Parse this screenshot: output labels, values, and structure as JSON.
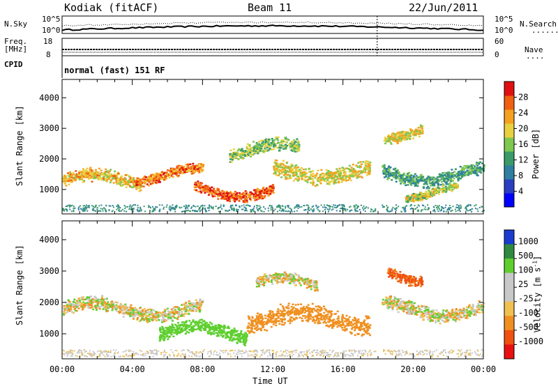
{
  "header": {
    "station": "Kodiak (fitACF)",
    "beam": "Beam 11",
    "date": "22/Jun/2011"
  },
  "top_panels": {
    "nsky_label": "N.Sky",
    "nsky_ticks": [
      "10^5",
      "10^0"
    ],
    "nsearch_label": "N.Search",
    "nsearch_ticks": [
      "10^5",
      "10^0"
    ],
    "freq_label": "Freq.",
    "freq_unit": "[MHz]",
    "freq_ticks": [
      "18",
      "8"
    ],
    "nave_label": "Nave",
    "nave_ticks": [
      "60",
      "0"
    ],
    "cpid_label": "CPID",
    "cpid_mode": "normal (fast) 151 RF"
  },
  "chart_data": [
    {
      "type": "heatmap",
      "name": "power",
      "ylabel": "Slant Range [km]",
      "yticks": [
        "4000",
        "3000",
        "2000",
        "1000"
      ],
      "ytick_values": [
        4000,
        3000,
        2000,
        1000
      ],
      "ylim": [
        200,
        4600
      ],
      "xlim_hours": [
        0,
        24
      ],
      "colorbar": {
        "label": "Power [dB]",
        "ticks": [
          "28",
          "24",
          "20",
          "16",
          "12",
          "8",
          "4"
        ],
        "tick_values": [
          28,
          24,
          20,
          16,
          12,
          8,
          4
        ],
        "range": [
          0,
          32
        ]
      },
      "features": [
        {
          "t0": 0.0,
          "t1": 4.5,
          "r": 1300,
          "w": 250,
          "v": 22
        },
        {
          "t0": 4.0,
          "t1": 8.0,
          "r": 1500,
          "w": 200,
          "v": 26
        },
        {
          "t0": 7.5,
          "t1": 12.0,
          "r": 1000,
          "w": 200,
          "v": 28
        },
        {
          "t0": 9.5,
          "t1": 13.5,
          "r": 2300,
          "w": 250,
          "v": 16
        },
        {
          "t0": 12.0,
          "t1": 17.5,
          "r": 1600,
          "w": 300,
          "v": 20
        },
        {
          "t0": 18.2,
          "t1": 24.0,
          "r": 1500,
          "w": 250,
          "v": 12
        },
        {
          "t0": 19.5,
          "t1": 22.5,
          "r": 950,
          "w": 150,
          "v": 18
        },
        {
          "t0": 18.3,
          "t1": 20.5,
          "r": 2900,
          "w": 200,
          "v": 20
        }
      ]
    },
    {
      "type": "heatmap",
      "name": "velocity",
      "ylabel": "Slant Range [km]",
      "yticks": [
        "4000",
        "3000",
        "2000",
        "1000"
      ],
      "ytick_values": [
        4000,
        3000,
        2000,
        1000
      ],
      "ylim": [
        200,
        4600
      ],
      "xlim_hours": [
        0,
        24
      ],
      "xticks": [
        "00:00",
        "04:00",
        "08:00",
        "12:00",
        "16:00",
        "20:00",
        "00:00"
      ],
      "xtick_hours": [
        0,
        4,
        8,
        12,
        16,
        20,
        24
      ],
      "xlabel": "Time UT",
      "colorbar": {
        "label": "Velocity [m s",
        "label_sup": "-1",
        "label_end": "]",
        "ticks": [
          "1000",
          "500",
          "100",
          "25",
          "-25",
          "-100",
          "-500",
          "-1000"
        ]
      },
      "features": [
        {
          "t0": 0.0,
          "t1": 8.0,
          "r": 1800,
          "w": 250,
          "v": 0
        },
        {
          "t0": 5.5,
          "t1": 10.5,
          "r": 1050,
          "w": 250,
          "v": 300
        },
        {
          "t0": 10.5,
          "t1": 17.5,
          "r": 1500,
          "w": 350,
          "v": -300
        },
        {
          "t0": 11.0,
          "t1": 14.5,
          "r": 2600,
          "w": 200,
          "v": 0
        },
        {
          "t0": 18.2,
          "t1": 24.0,
          "r": 1800,
          "w": 250,
          "v": 0
        },
        {
          "t0": 18.5,
          "t1": 20.5,
          "r": 2900,
          "w": 200,
          "v": -600
        }
      ]
    }
  ],
  "colors": {
    "power_scale": [
      "#0000ff",
      "#2a3fc0",
      "#2f7fa0",
      "#3a9a6a",
      "#7ec850",
      "#e8d040",
      "#f5a020",
      "#f06010",
      "#e01010"
    ],
    "velocity_scale": [
      "#1a3ad0",
      "#2f8a40",
      "#5fcf30",
      "#c8c8c8",
      "#c8c8c8",
      "#f0c050",
      "#f09020",
      "#f05010",
      "#e81010"
    ]
  }
}
